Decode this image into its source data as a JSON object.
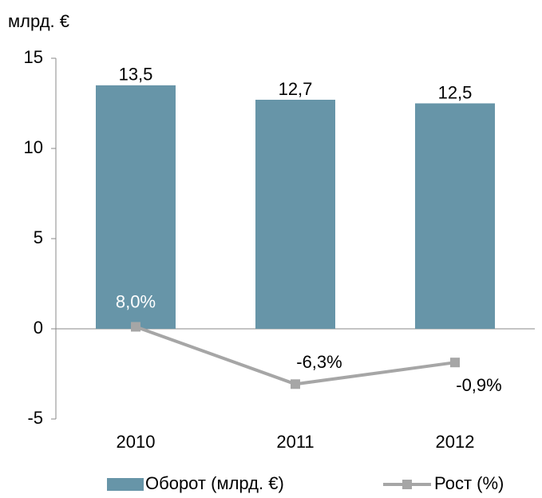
{
  "chart_data": {
    "type": "bar_line",
    "y_label": "млрд. €",
    "categories": [
      "2010",
      "2011",
      "2012"
    ],
    "series": [
      {
        "name": "Оборот (млрд. €)",
        "color": "#6795a8",
        "type": "bar",
        "values": [
          13.5,
          12.7,
          12.5
        ],
        "value_labels": [
          "13,5",
          "12,7",
          "12,5"
        ]
      },
      {
        "name": "Рост (%)",
        "color": "#a6a6a6",
        "type": "line",
        "axis": "y2",
        "values": [
          8.0,
          -6.3,
          -0.9
        ],
        "value_labels": [
          "8,0%",
          "-6,3%",
          "-0,9%"
        ]
      }
    ],
    "ylim": [
      -5,
      15
    ],
    "yticks": [
      -5,
      0,
      5,
      10,
      15
    ],
    "y2lim": [
      -15,
      75
    ],
    "legend": "bottom"
  }
}
